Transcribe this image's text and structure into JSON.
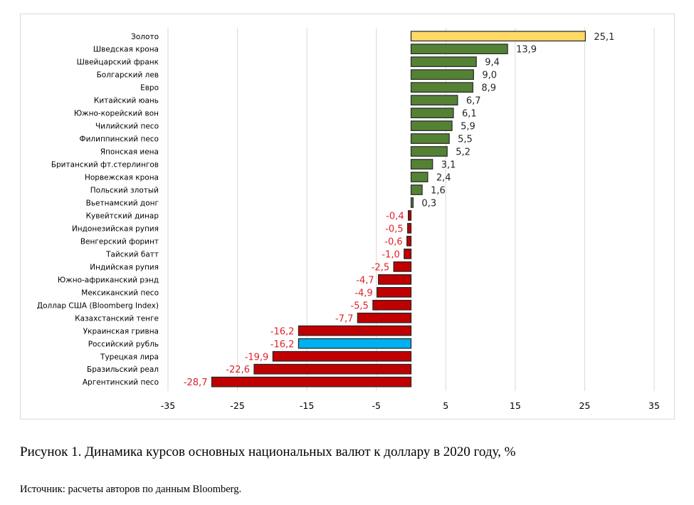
{
  "chart_data": {
    "type": "bar",
    "orientation": "horizontal",
    "title": "",
    "xlabel": "",
    "ylabel": "",
    "xlim": [
      -35,
      35
    ],
    "xticks": [
      -35,
      -25,
      -15,
      -5,
      5,
      15,
      25,
      35
    ],
    "xtick_labels": [
      "-35",
      "-25",
      "-15",
      "-5",
      "5",
      "15",
      "25",
      "35"
    ],
    "grid": "vertical",
    "legend": "none",
    "categories": [
      "Золото",
      "Шведская крона",
      "Швейцарский франк",
      "Болгарский лев",
      "Евро",
      "Китайский юань",
      "Южно-корейский вон",
      "Чилийский песо",
      "Филиппинский песо",
      "Японская иена",
      "Британский фт.стерлингов",
      "Норвежская крона",
      "Польский злотый",
      "Вьетнамский донг",
      "Кувейтский динар",
      "Индонезийская рупия",
      "Венгерский форинт",
      "Тайский батт",
      "Индийская рупия",
      "Южно-африканский рэнд",
      "Мексиканский песо",
      "Доллар США (Bloomberg Index)",
      "Казахстанский тенге",
      "Украинская гривна",
      "Российский рубль",
      "Турецкая лира",
      "Бразильский реал",
      "Аргентинский песо"
    ],
    "values": [
      25.1,
      13.9,
      9.4,
      9.0,
      8.9,
      6.7,
      6.1,
      5.9,
      5.5,
      5.2,
      3.1,
      2.4,
      1.6,
      0.3,
      -0.4,
      -0.5,
      -0.6,
      -1.0,
      -2.5,
      -4.7,
      -4.9,
      -5.5,
      -7.7,
      -16.2,
      -16.2,
      -19.9,
      -22.6,
      -28.7
    ],
    "value_labels": [
      "25,1",
      "13,9",
      "9,4",
      "9,0",
      "8,9",
      "6,7",
      "6,1",
      "5,9",
      "5,5",
      "5,2",
      "3,1",
      "2,4",
      "1,6",
      "0,3",
      "-0,4",
      "-0,5",
      "-0,6",
      "-1,0",
      "-2,5",
      "-4,7",
      "-4,9",
      "-5,5",
      "-7,7",
      "-16,2",
      "-16,2",
      "-19,9",
      "-22,6",
      "-28,7"
    ],
    "bar_colors": [
      "#FFD966",
      "#548235",
      "#548235",
      "#548235",
      "#548235",
      "#548235",
      "#548235",
      "#548235",
      "#548235",
      "#548235",
      "#548235",
      "#548235",
      "#548235",
      "#548235",
      "#C00000",
      "#C00000",
      "#C00000",
      "#C00000",
      "#C00000",
      "#C00000",
      "#C00000",
      "#C00000",
      "#C00000",
      "#C00000",
      "#00B0F0",
      "#C00000",
      "#C00000",
      "#C00000"
    ],
    "colors": {
      "positive_label": "#262626",
      "negative_label": "#E0202B",
      "bar_border": "#262626",
      "grid": "#D9D9D9"
    }
  },
  "caption": "Рисунок 1. Динамика курсов основных национальных валют к доллару в 2020 году, %",
  "source": "Источник: расчеты авторов по данным Bloomberg."
}
